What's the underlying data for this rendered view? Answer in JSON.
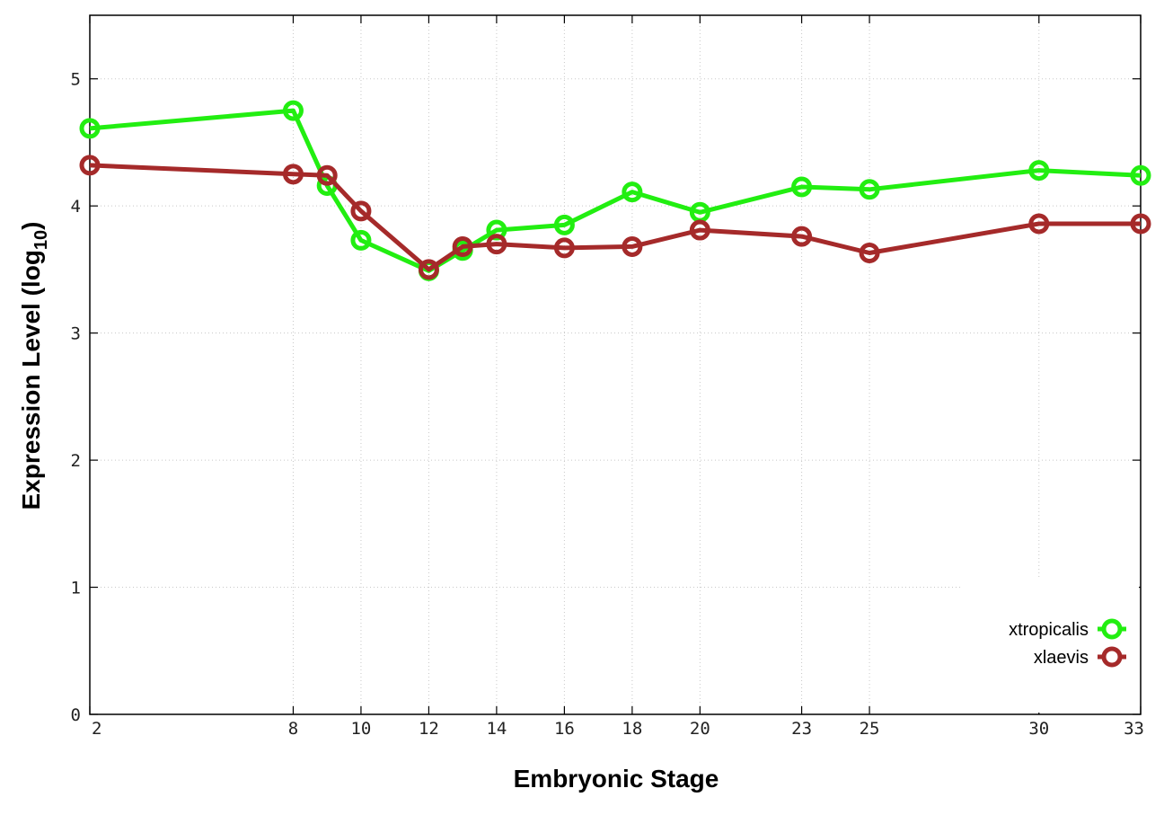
{
  "chart_data": {
    "type": "line",
    "xlabel": "Embryonic Stage",
    "ylabel": "Expression Level (log",
    "ylabel_subscript": "10",
    "ylabel_close": ")",
    "xlim": [
      2,
      33
    ],
    "ylim": [
      0,
      5.5
    ],
    "x_ticks": [
      2,
      8,
      10,
      12,
      14,
      16,
      18,
      20,
      23,
      25,
      30,
      33
    ],
    "y_ticks": [
      0,
      1,
      2,
      3,
      4,
      5
    ],
    "grid": true,
    "legend_position": "bottom-right",
    "series": [
      {
        "name": "xtropicalis",
        "color": "#22ee11",
        "x": [
          2,
          8,
          9,
          10,
          12,
          13,
          14,
          16,
          18,
          20,
          23,
          25,
          30,
          33
        ],
        "y": [
          4.61,
          4.75,
          4.16,
          3.73,
          3.49,
          3.65,
          3.81,
          3.85,
          4.11,
          3.95,
          4.15,
          4.13,
          4.28,
          4.24
        ]
      },
      {
        "name": "xlaevis",
        "color": "#a52a2a",
        "x": [
          2,
          8,
          9,
          10,
          12,
          13,
          14,
          16,
          18,
          20,
          23,
          25,
          30,
          33
        ],
        "y": [
          4.32,
          4.25,
          4.24,
          3.96,
          3.5,
          3.68,
          3.7,
          3.67,
          3.68,
          3.81,
          3.76,
          3.63,
          3.86,
          3.86
        ]
      }
    ]
  }
}
